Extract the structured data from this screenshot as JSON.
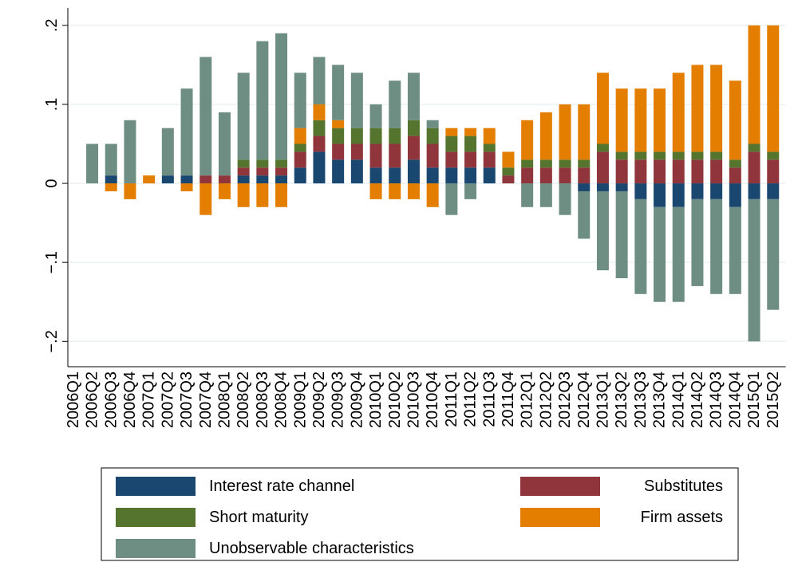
{
  "chart_data": {
    "type": "stacked-bar",
    "categories": [
      "2006Q1",
      "2006Q2",
      "2006Q3",
      "2006Q4",
      "2007Q1",
      "2007Q2",
      "2007Q3",
      "2007Q4",
      "2008Q1",
      "2008Q2",
      "2008Q3",
      "2008Q4",
      "2009Q1",
      "2009Q2",
      "2009Q3",
      "2009Q4",
      "2010Q1",
      "2010Q2",
      "2010Q3",
      "2010Q4",
      "2011Q1",
      "2011Q2",
      "2011Q3",
      "2011Q4",
      "2012Q1",
      "2012Q2",
      "2012Q3",
      "2012Q4",
      "2013Q1",
      "2013Q2",
      "2013Q3",
      "2013Q4",
      "2014Q1",
      "2014Q2",
      "2014Q3",
      "2014Q4",
      "2015Q1",
      "2015Q2"
    ],
    "series": [
      {
        "name": "Interest rate channel",
        "color": "#1a476f",
        "values": [
          0,
          0,
          0.01,
          0,
          0,
          0.01,
          0.01,
          0,
          0,
          0.01,
          0.01,
          0.01,
          0.02,
          0.04,
          0.03,
          0.03,
          0.02,
          0.02,
          0.03,
          0.02,
          0.02,
          0.02,
          0.02,
          0,
          0,
          0,
          0,
          -0.01,
          -0.01,
          -0.01,
          -0.02,
          -0.03,
          -0.03,
          -0.02,
          -0.02,
          -0.03,
          -0.02,
          -0.02
        ]
      },
      {
        "name": "Substitutes",
        "color": "#90353b",
        "values": [
          0,
          0,
          0,
          0,
          0,
          0,
          0,
          0.01,
          0.01,
          0.01,
          0.01,
          0.01,
          0.02,
          0.02,
          0.02,
          0.02,
          0.03,
          0.03,
          0.03,
          0.03,
          0.02,
          0.02,
          0.02,
          0.01,
          0.02,
          0.02,
          0.02,
          0.02,
          0.04,
          0.03,
          0.03,
          0.03,
          0.03,
          0.03,
          0.03,
          0.02,
          0.04,
          0.03
        ]
      },
      {
        "name": "Short maturity",
        "color": "#55752f",
        "values": [
          0,
          0,
          0,
          0,
          0,
          0,
          0,
          0,
          0,
          0.01,
          0.01,
          0.01,
          0.01,
          0.02,
          0.02,
          0.02,
          0.02,
          0.02,
          0.02,
          0.02,
          0.02,
          0.02,
          0.01,
          0.01,
          0.01,
          0.01,
          0.01,
          0.01,
          0.01,
          0.01,
          0.01,
          0.01,
          0.01,
          0.01,
          0.01,
          0.01,
          0.01,
          0.01
        ]
      },
      {
        "name": "Firm assets",
        "color": "#e37e00",
        "values": [
          0,
          0,
          -0.01,
          -0.02,
          0.01,
          0,
          -0.01,
          -0.04,
          -0.02,
          -0.03,
          -0.03,
          -0.03,
          0.02,
          0.02,
          0.01,
          0,
          -0.02,
          -0.02,
          -0.02,
          -0.03,
          0.01,
          0.01,
          0.02,
          0.02,
          0.05,
          0.06,
          0.07,
          0.07,
          0.09,
          0.08,
          0.08,
          0.08,
          0.1,
          0.11,
          0.11,
          0.1,
          0.15,
          0.16
        ]
      },
      {
        "name": "Unobservable characteristics",
        "color": "#6e8e84",
        "values": [
          0,
          0.05,
          0.04,
          0.08,
          0,
          0.06,
          0.11,
          0.15,
          0.08,
          0.11,
          0.15,
          0.16,
          0.07,
          0.06,
          0.07,
          0.07,
          0.03,
          0.06,
          0.06,
          0.01,
          -0.04,
          -0.02,
          0,
          0,
          -0.03,
          -0.03,
          -0.04,
          -0.06,
          -0.1,
          -0.11,
          -0.12,
          -0.12,
          -0.12,
          -0.11,
          -0.12,
          -0.11,
          -0.18,
          -0.14
        ]
      }
    ],
    "ylim": [
      -0.232,
      0.222
    ],
    "yticks": [
      {
        "value": -0.2,
        "label": "−.2"
      },
      {
        "value": -0.1,
        "label": "−.1"
      },
      0,
      {
        "value": 0.1,
        "label": ".1"
      },
      {
        "value": 0.2,
        "label": ".2"
      }
    ],
    "grid": true
  }
}
